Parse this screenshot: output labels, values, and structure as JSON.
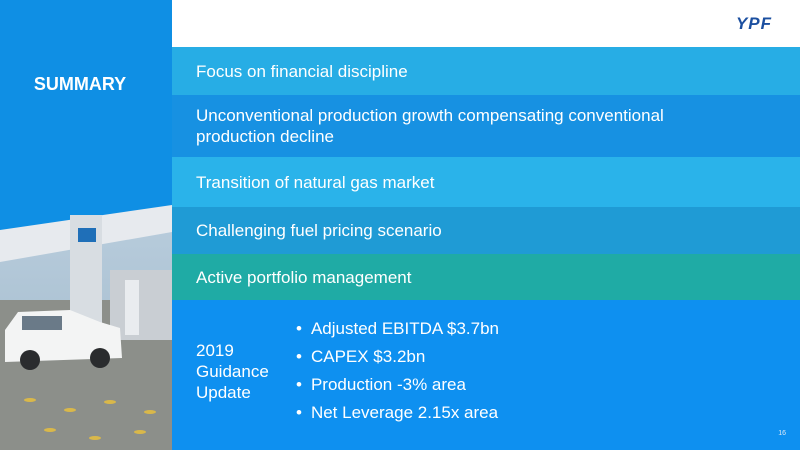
{
  "header": {
    "logo": "YPF"
  },
  "sidebar": {
    "title": "SUMMARY"
  },
  "rows": [
    "Focus on financial discipline",
    "Unconventional production growth compensating conventional production decline",
    "Transition of natural gas market",
    "Challenging fuel pricing scenario",
    "Active portfolio management"
  ],
  "guidance": {
    "label": "2019 Guidance Update",
    "bullets": [
      "Adjusted EBITDA $3.7bn",
      "CAPEX $3.2bn",
      "Production -3% area",
      "Net Leverage 2.15x area"
    ]
  },
  "page_number": "16"
}
